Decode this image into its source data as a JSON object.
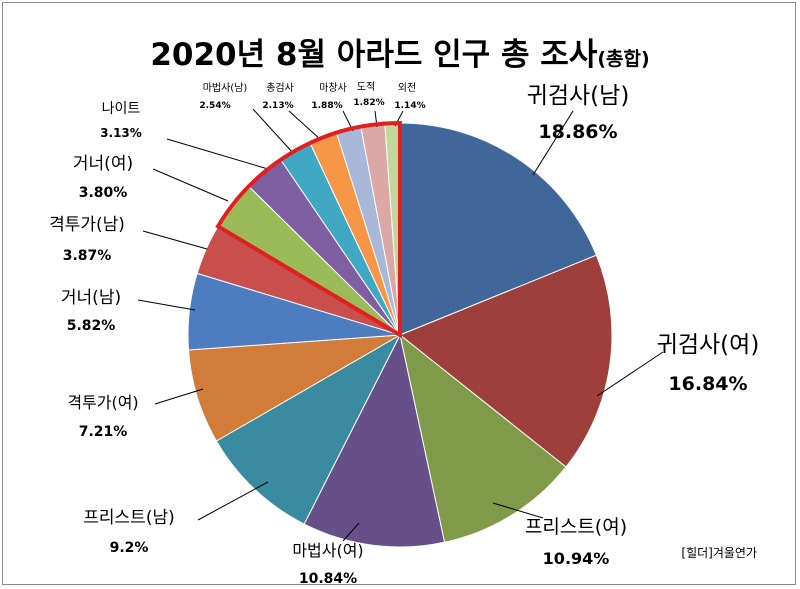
{
  "chart_data": {
    "type": "pie",
    "title": "2020년 8월 아라드 인구 총 조사",
    "subtitle": "(총합)",
    "slices": [
      {
        "name": "귀검사(남)",
        "value": 18.86,
        "label": "18.86%",
        "color": "#41679a"
      },
      {
        "name": "귀검사(여)",
        "value": 16.84,
        "label": "16.84%",
        "color": "#9e3f3c"
      },
      {
        "name": "프리스트(여)",
        "value": 10.94,
        "label": "10.94%",
        "color": "#7f9a48"
      },
      {
        "name": "마법사(여)",
        "value": 10.84,
        "label": "10.84%",
        "color": "#67508a"
      },
      {
        "name": "프리스트(남)",
        "value": 9.2,
        "label": "9.2%",
        "color": "#3b8ba0"
      },
      {
        "name": "격투가(여)",
        "value": 7.21,
        "label": "7.21%",
        "color": "#d27c3a"
      },
      {
        "name": "거너(남)",
        "value": 5.82,
        "label": "5.82%",
        "color": "#4d7cc0"
      },
      {
        "name": "격투가(남)",
        "value": 3.87,
        "label": "3.87%",
        "color": "#c94f4d"
      },
      {
        "name": "거너(여)",
        "value": 3.8,
        "label": "3.80%",
        "color": "#9bbb59"
      },
      {
        "name": "나이트",
        "value": 3.13,
        "label": "3.13%",
        "color": "#7e60a2"
      },
      {
        "name": "마법사(남)",
        "value": 2.54,
        "label": "2.54%",
        "color": "#41a8c4"
      },
      {
        "name": "총검사",
        "value": 2.13,
        "label": "2.13%",
        "color": "#f79646"
      },
      {
        "name": "마창사",
        "value": 1.88,
        "label": "1.88%",
        "color": "#a8b8d8"
      },
      {
        "name": "도적",
        "value": 1.82,
        "label": "1.82%",
        "color": "#dba8a6"
      },
      {
        "name": "외전",
        "value": 1.14,
        "label": "1.14%",
        "color": "#c3d69b"
      }
    ],
    "highlight": {
      "slices": [
        "거너(여)",
        "나이트",
        "마법사(남)",
        "총검사",
        "마창사",
        "도적",
        "외전"
      ],
      "outline_color": "#e02020"
    },
    "legend": "none"
  },
  "footnote": "[힐더]겨울연가"
}
